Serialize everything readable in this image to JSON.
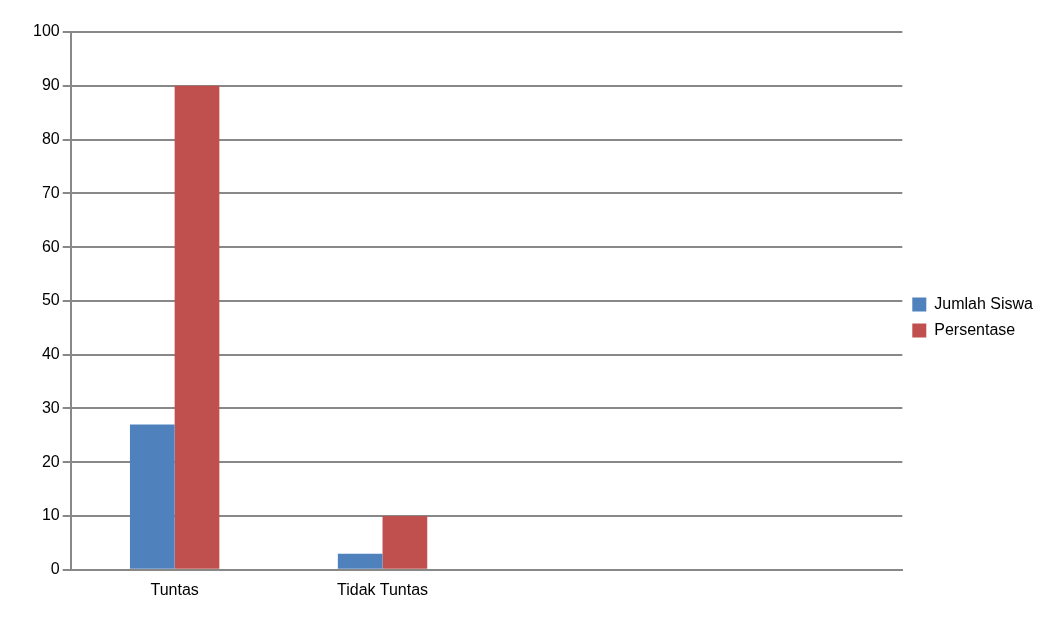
{
  "chart_data": {
    "type": "bar",
    "categories": [
      "Tuntas",
      "Tidak Tuntas",
      null,
      null
    ],
    "series": [
      {
        "name": "Jumlah Siswa",
        "color": "#4f81bd",
        "values": [
          27,
          3,
          null,
          null
        ]
      },
      {
        "name": "Persentase",
        "color": "#c0504d",
        "values": [
          90,
          10,
          null,
          null
        ]
      }
    ],
    "ylim": [
      0,
      100
    ],
    "yticks": [
      0,
      10,
      20,
      30,
      40,
      50,
      60,
      70,
      80,
      90,
      100
    ],
    "grid": "y",
    "legend": "right"
  }
}
